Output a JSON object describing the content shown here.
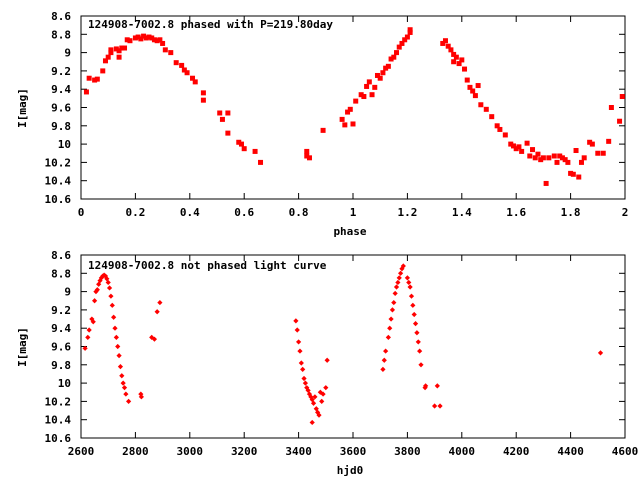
{
  "chart_data": [
    {
      "type": "scatter",
      "title": "124908-7002.8 phased with P=219.80day",
      "xlabel": "phase",
      "ylabel": "I[mag]",
      "xlim": [
        0,
        2
      ],
      "ylim": [
        8.6,
        10.6
      ],
      "y_inverted": true,
      "x_ticks": [
        "0",
        "0.2",
        "0.4",
        "0.6",
        "0.8",
        "1",
        "1.2",
        "1.4",
        "1.6",
        "1.8",
        "2"
      ],
      "y_ticks": [
        "8.6",
        "8.8",
        "9",
        "9.2",
        "9.4",
        "9.6",
        "9.8",
        "10",
        "10.2",
        "10.4",
        "10.6"
      ],
      "grid": false,
      "marker_color": "#ff0000",
      "marker": "filled-square",
      "points": [
        [
          0.02,
          9.43
        ],
        [
          0.03,
          9.28
        ],
        [
          0.05,
          9.3
        ],
        [
          0.06,
          9.29
        ],
        [
          0.08,
          9.2
        ],
        [
          0.09,
          9.09
        ],
        [
          0.1,
          9.05
        ],
        [
          0.11,
          9.0
        ],
        [
          0.11,
          8.97
        ],
        [
          0.13,
          8.96
        ],
        [
          0.14,
          8.98
        ],
        [
          0.15,
          8.95
        ],
        [
          0.14,
          9.05
        ],
        [
          0.16,
          8.95
        ],
        [
          0.17,
          8.86
        ],
        [
          0.18,
          8.87
        ],
        [
          0.2,
          8.84
        ],
        [
          0.21,
          8.83
        ],
        [
          0.22,
          8.85
        ],
        [
          0.23,
          8.82
        ],
        [
          0.24,
          8.84
        ],
        [
          0.25,
          8.83
        ],
        [
          0.26,
          8.84
        ],
        [
          0.27,
          8.86
        ],
        [
          0.28,
          8.87
        ],
        [
          0.29,
          8.86
        ],
        [
          0.3,
          8.9
        ],
        [
          0.31,
          8.97
        ],
        [
          0.33,
          9.0
        ],
        [
          0.35,
          9.11
        ],
        [
          0.37,
          9.14
        ],
        [
          0.38,
          9.19
        ],
        [
          0.39,
          9.22
        ],
        [
          0.41,
          9.28
        ],
        [
          0.42,
          9.32
        ],
        [
          0.45,
          9.44
        ],
        [
          0.45,
          9.52
        ],
        [
          0.51,
          9.66
        ],
        [
          0.52,
          9.73
        ],
        [
          0.54,
          9.66
        ],
        [
          0.54,
          9.88
        ],
        [
          0.58,
          9.98
        ],
        [
          0.59,
          10.0
        ],
        [
          0.6,
          10.05
        ],
        [
          0.64,
          10.08
        ],
        [
          0.66,
          10.2
        ],
        [
          0.83,
          10.13
        ],
        [
          0.83,
          10.08
        ],
        [
          0.84,
          10.15
        ],
        [
          0.89,
          9.85
        ],
        [
          0.96,
          9.73
        ],
        [
          0.97,
          9.79
        ],
        [
          0.98,
          9.65
        ],
        [
          0.99,
          9.62
        ],
        [
          1.0,
          9.78
        ],
        [
          1.01,
          9.53
        ],
        [
          1.03,
          9.46
        ],
        [
          1.04,
          9.48
        ],
        [
          1.05,
          9.37
        ],
        [
          1.06,
          9.32
        ],
        [
          1.07,
          9.46
        ],
        [
          1.08,
          9.38
        ],
        [
          1.09,
          9.25
        ],
        [
          1.1,
          9.28
        ],
        [
          1.11,
          9.22
        ],
        [
          1.12,
          9.17
        ],
        [
          1.13,
          9.15
        ],
        [
          1.14,
          9.07
        ],
        [
          1.15,
          9.05
        ],
        [
          1.16,
          9.0
        ],
        [
          1.17,
          8.94
        ],
        [
          1.18,
          8.9
        ],
        [
          1.19,
          8.86
        ],
        [
          1.2,
          8.83
        ],
        [
          1.21,
          8.78
        ],
        [
          1.21,
          8.75
        ],
        [
          1.33,
          8.9
        ],
        [
          1.34,
          8.87
        ],
        [
          1.35,
          8.93
        ],
        [
          1.36,
          8.97
        ],
        [
          1.37,
          9.02
        ],
        [
          1.37,
          9.1
        ],
        [
          1.38,
          9.05
        ],
        [
          1.39,
          9.12
        ],
        [
          1.4,
          9.08
        ],
        [
          1.41,
          9.18
        ],
        [
          1.42,
          9.3
        ],
        [
          1.43,
          9.38
        ],
        [
          1.44,
          9.42
        ],
        [
          1.45,
          9.47
        ],
        [
          1.46,
          9.36
        ],
        [
          1.47,
          9.57
        ],
        [
          1.49,
          9.62
        ],
        [
          1.51,
          9.7
        ],
        [
          1.53,
          9.8
        ],
        [
          1.54,
          9.84
        ],
        [
          1.56,
          9.9
        ],
        [
          1.58,
          10.0
        ],
        [
          1.59,
          10.02
        ],
        [
          1.6,
          10.05
        ],
        [
          1.61,
          10.03
        ],
        [
          1.62,
          10.08
        ],
        [
          1.64,
          9.99
        ],
        [
          1.65,
          10.13
        ],
        [
          1.66,
          10.06
        ],
        [
          1.67,
          10.15
        ],
        [
          1.68,
          10.11
        ],
        [
          1.69,
          10.17
        ],
        [
          1.7,
          10.15
        ],
        [
          1.71,
          10.43
        ],
        [
          1.72,
          10.15
        ],
        [
          1.74,
          10.13
        ],
        [
          1.75,
          10.2
        ],
        [
          1.76,
          10.13
        ],
        [
          1.77,
          10.15
        ],
        [
          1.78,
          10.17
        ],
        [
          1.79,
          10.2
        ],
        [
          1.8,
          10.32
        ],
        [
          1.81,
          10.33
        ],
        [
          1.82,
          10.07
        ],
        [
          1.83,
          10.36
        ],
        [
          1.84,
          10.2
        ],
        [
          1.85,
          10.15
        ],
        [
          1.87,
          9.98
        ],
        [
          1.88,
          10.0
        ],
        [
          1.9,
          10.1
        ],
        [
          1.92,
          10.1
        ],
        [
          1.94,
          9.97
        ],
        [
          1.95,
          9.6
        ],
        [
          1.98,
          9.75
        ],
        [
          1.99,
          9.48
        ]
      ]
    },
    {
      "type": "scatter",
      "title": "124908-7002.8 not phased light curve",
      "xlabel": "hjd0",
      "ylabel": "I[mag]",
      "xlim": [
        2600,
        4600
      ],
      "ylim": [
        8.6,
        10.6
      ],
      "y_inverted": true,
      "x_ticks": [
        "2600",
        "2800",
        "3000",
        "3200",
        "3400",
        "3600",
        "3800",
        "4000",
        "4200",
        "4400",
        "4600"
      ],
      "y_ticks": [
        "8.6",
        "8.8",
        "9",
        "9.2",
        "9.4",
        "9.6",
        "9.8",
        "10",
        "10.2",
        "10.4",
        "10.6"
      ],
      "grid": false,
      "marker_color": "#ff0000",
      "marker": "filled-diamond",
      "points": [
        [
          2615,
          9.62
        ],
        [
          2625,
          9.5
        ],
        [
          2630,
          9.42
        ],
        [
          2640,
          9.3
        ],
        [
          2645,
          9.33
        ],
        [
          2650,
          9.1
        ],
        [
          2655,
          9.0
        ],
        [
          2660,
          8.98
        ],
        [
          2665,
          8.92
        ],
        [
          2670,
          8.88
        ],
        [
          2675,
          8.85
        ],
        [
          2680,
          8.83
        ],
        [
          2685,
          8.82
        ],
        [
          2690,
          8.83
        ],
        [
          2695,
          8.86
        ],
        [
          2700,
          8.9
        ],
        [
          2705,
          8.96
        ],
        [
          2710,
          9.05
        ],
        [
          2715,
          9.15
        ],
        [
          2720,
          9.28
        ],
        [
          2725,
          9.4
        ],
        [
          2730,
          9.5
        ],
        [
          2735,
          9.6
        ],
        [
          2740,
          9.7
        ],
        [
          2745,
          9.82
        ],
        [
          2750,
          9.92
        ],
        [
          2755,
          10.0
        ],
        [
          2760,
          10.05
        ],
        [
          2765,
          10.12
        ],
        [
          2775,
          10.2
        ],
        [
          2820,
          10.12
        ],
        [
          2822,
          10.15
        ],
        [
          2860,
          9.5
        ],
        [
          2870,
          9.52
        ],
        [
          2880,
          9.22
        ],
        [
          2890,
          9.12
        ],
        [
          3390,
          9.32
        ],
        [
          3395,
          9.42
        ],
        [
          3400,
          9.55
        ],
        [
          3405,
          9.65
        ],
        [
          3410,
          9.78
        ],
        [
          3415,
          9.85
        ],
        [
          3420,
          9.95
        ],
        [
          3425,
          10.0
        ],
        [
          3430,
          10.05
        ],
        [
          3435,
          10.08
        ],
        [
          3440,
          10.12
        ],
        [
          3445,
          10.15
        ],
        [
          3450,
          10.18
        ],
        [
          3455,
          10.22
        ],
        [
          3460,
          10.15
        ],
        [
          3465,
          10.28
        ],
        [
          3470,
          10.32
        ],
        [
          3475,
          10.35
        ],
        [
          3480,
          10.1
        ],
        [
          3485,
          10.2
        ],
        [
          3490,
          10.12
        ],
        [
          3500,
          10.05
        ],
        [
          3505,
          9.75
        ],
        [
          3450,
          10.43
        ],
        [
          3710,
          9.85
        ],
        [
          3715,
          9.75
        ],
        [
          3720,
          9.65
        ],
        [
          3730,
          9.5
        ],
        [
          3735,
          9.4
        ],
        [
          3740,
          9.3
        ],
        [
          3745,
          9.2
        ],
        [
          3750,
          9.12
        ],
        [
          3755,
          9.02
        ],
        [
          3760,
          8.95
        ],
        [
          3765,
          8.9
        ],
        [
          3770,
          8.85
        ],
        [
          3775,
          8.8
        ],
        [
          3780,
          8.75
        ],
        [
          3785,
          8.72
        ],
        [
          3800,
          8.85
        ],
        [
          3805,
          8.9
        ],
        [
          3810,
          8.95
        ],
        [
          3815,
          9.05
        ],
        [
          3820,
          9.15
        ],
        [
          3825,
          9.25
        ],
        [
          3830,
          9.35
        ],
        [
          3835,
          9.45
        ],
        [
          3840,
          9.55
        ],
        [
          3845,
          9.65
        ],
        [
          3850,
          9.8
        ],
        [
          3865,
          10.05
        ],
        [
          3867,
          10.03
        ],
        [
          3900,
          10.25
        ],
        [
          3910,
          10.03
        ],
        [
          3920,
          10.25
        ],
        [
          4510,
          9.67
        ]
      ]
    }
  ]
}
